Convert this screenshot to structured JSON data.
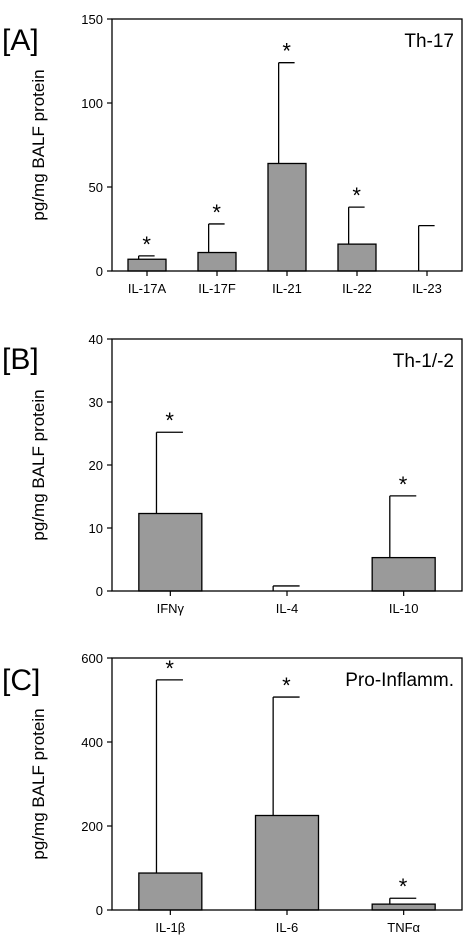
{
  "chart_data": [
    {
      "type": "bar",
      "panel_label": "[A]",
      "title": "Th-17",
      "ylabel": "pg/mg BALF protein",
      "xlabel": "",
      "ylim": [
        0,
        150
      ],
      "y_ticks": [
        0,
        50,
        100,
        150
      ],
      "categories": [
        "IL-17A",
        "IL-17F",
        "IL-21",
        "IL-22",
        "IL-23"
      ],
      "values": [
        7,
        11,
        64,
        16,
        0
      ],
      "error_upper": [
        9,
        28,
        124,
        38,
        27
      ],
      "significant": [
        true,
        true,
        true,
        true,
        false
      ],
      "significance_marker": "*",
      "bar_color": "#9a9a9a",
      "grid": false,
      "legend": "none"
    },
    {
      "type": "bar",
      "panel_label": "[B]",
      "title": "Th-1/-2",
      "ylabel": "pg/mg BALF protein",
      "xlabel": "",
      "ylim": [
        0,
        40
      ],
      "y_ticks": [
        0,
        10,
        20,
        30,
        40
      ],
      "categories": [
        "IFNγ",
        "IL-4",
        "IL-10"
      ],
      "values": [
        12.3,
        0,
        5.3
      ],
      "error_upper": [
        25.2,
        0.8,
        15.1
      ],
      "significant": [
        true,
        false,
        true
      ],
      "significance_marker": "*",
      "bar_color": "#9a9a9a",
      "grid": false,
      "legend": "none"
    },
    {
      "type": "bar",
      "panel_label": "[C]",
      "title": "Pro-Inflamm.",
      "ylabel": "pg/mg BALF protein",
      "xlabel": "",
      "ylim": [
        0,
        600
      ],
      "y_ticks": [
        0,
        200,
        400,
        600
      ],
      "categories": [
        "IL-1β",
        "IL-6",
        "TNFα"
      ],
      "values": [
        88,
        225,
        14
      ],
      "error_upper": [
        548,
        507,
        28
      ],
      "significant": [
        true,
        true,
        true
      ],
      "significance_marker": "*",
      "bar_color": "#9a9a9a",
      "grid": false,
      "legend": "none"
    }
  ]
}
